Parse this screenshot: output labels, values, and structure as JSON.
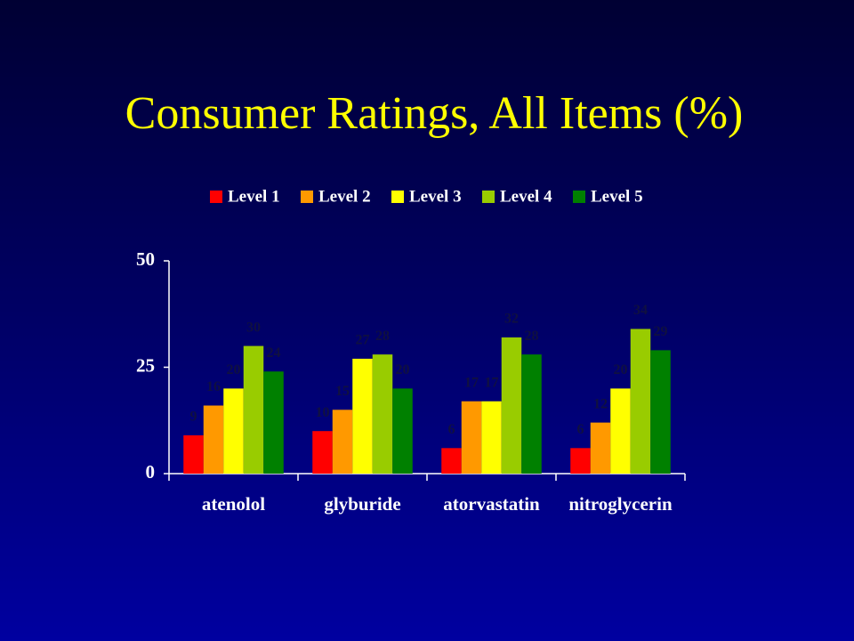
{
  "chart_data": {
    "type": "bar",
    "title": "Consumer Ratings, All Items (%)",
    "categories": [
      "atenolol",
      "glyburide",
      "atorvastatin",
      "nitroglycerin"
    ],
    "series": [
      {
        "name": "Level 1",
        "color": "#ff0000",
        "values": [
          9,
          10,
          6,
          6
        ]
      },
      {
        "name": "Level 2",
        "color": "#ff9900",
        "values": [
          16,
          15,
          17,
          12
        ]
      },
      {
        "name": "Level 3",
        "color": "#ffff00",
        "values": [
          20,
          27,
          17,
          20
        ]
      },
      {
        "name": "Level 4",
        "color": "#99cc00",
        "values": [
          30,
          28,
          32,
          34
        ]
      },
      {
        "name": "Level 5",
        "color": "#008000",
        "values": [
          24,
          20,
          28,
          29
        ]
      }
    ],
    "ylim": [
      0,
      50
    ],
    "yticks": [
      0,
      25,
      50
    ],
    "legend": "top"
  }
}
